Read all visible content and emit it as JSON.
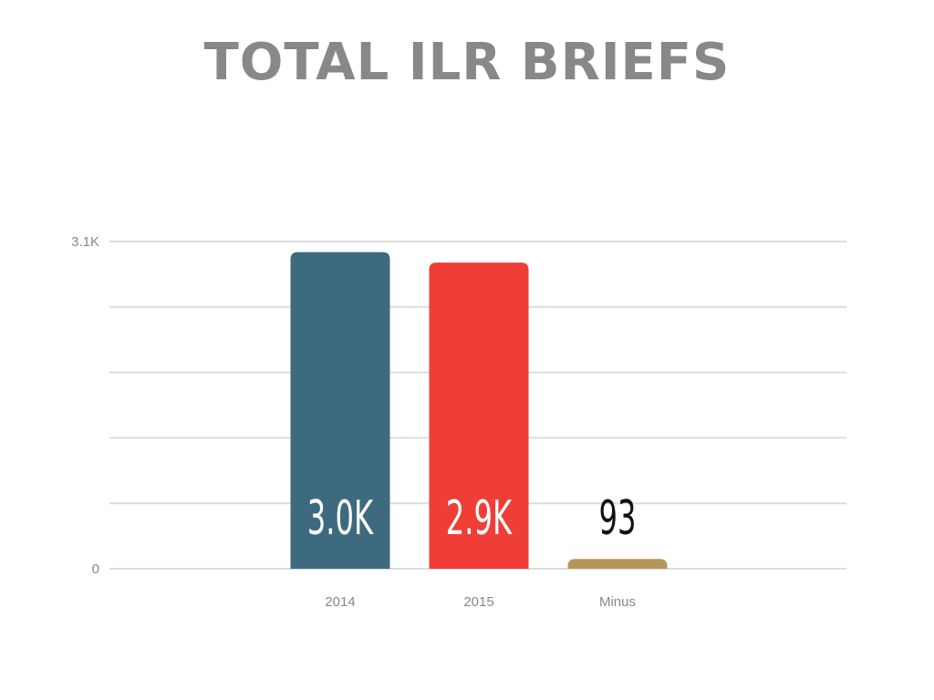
{
  "chart_data": {
    "type": "bar",
    "title": "TOTAL ILR BRIEFS",
    "xlabel": "",
    "ylabel": "",
    "ylim": [
      0,
      3100
    ],
    "y_tick_labels": [
      "0",
      "3.1K"
    ],
    "grid": true,
    "categories": [
      "2014",
      "2015",
      "Minus"
    ],
    "values": [
      3000,
      2900,
      93
    ],
    "data_labels": [
      "3.0K",
      "2.9K",
      "93"
    ],
    "colors": [
      "#3d6a7e",
      "#ef3e36",
      "#b5965a"
    ],
    "label_colors": [
      "#ffffff",
      "#ffffff",
      "#111111"
    ]
  }
}
